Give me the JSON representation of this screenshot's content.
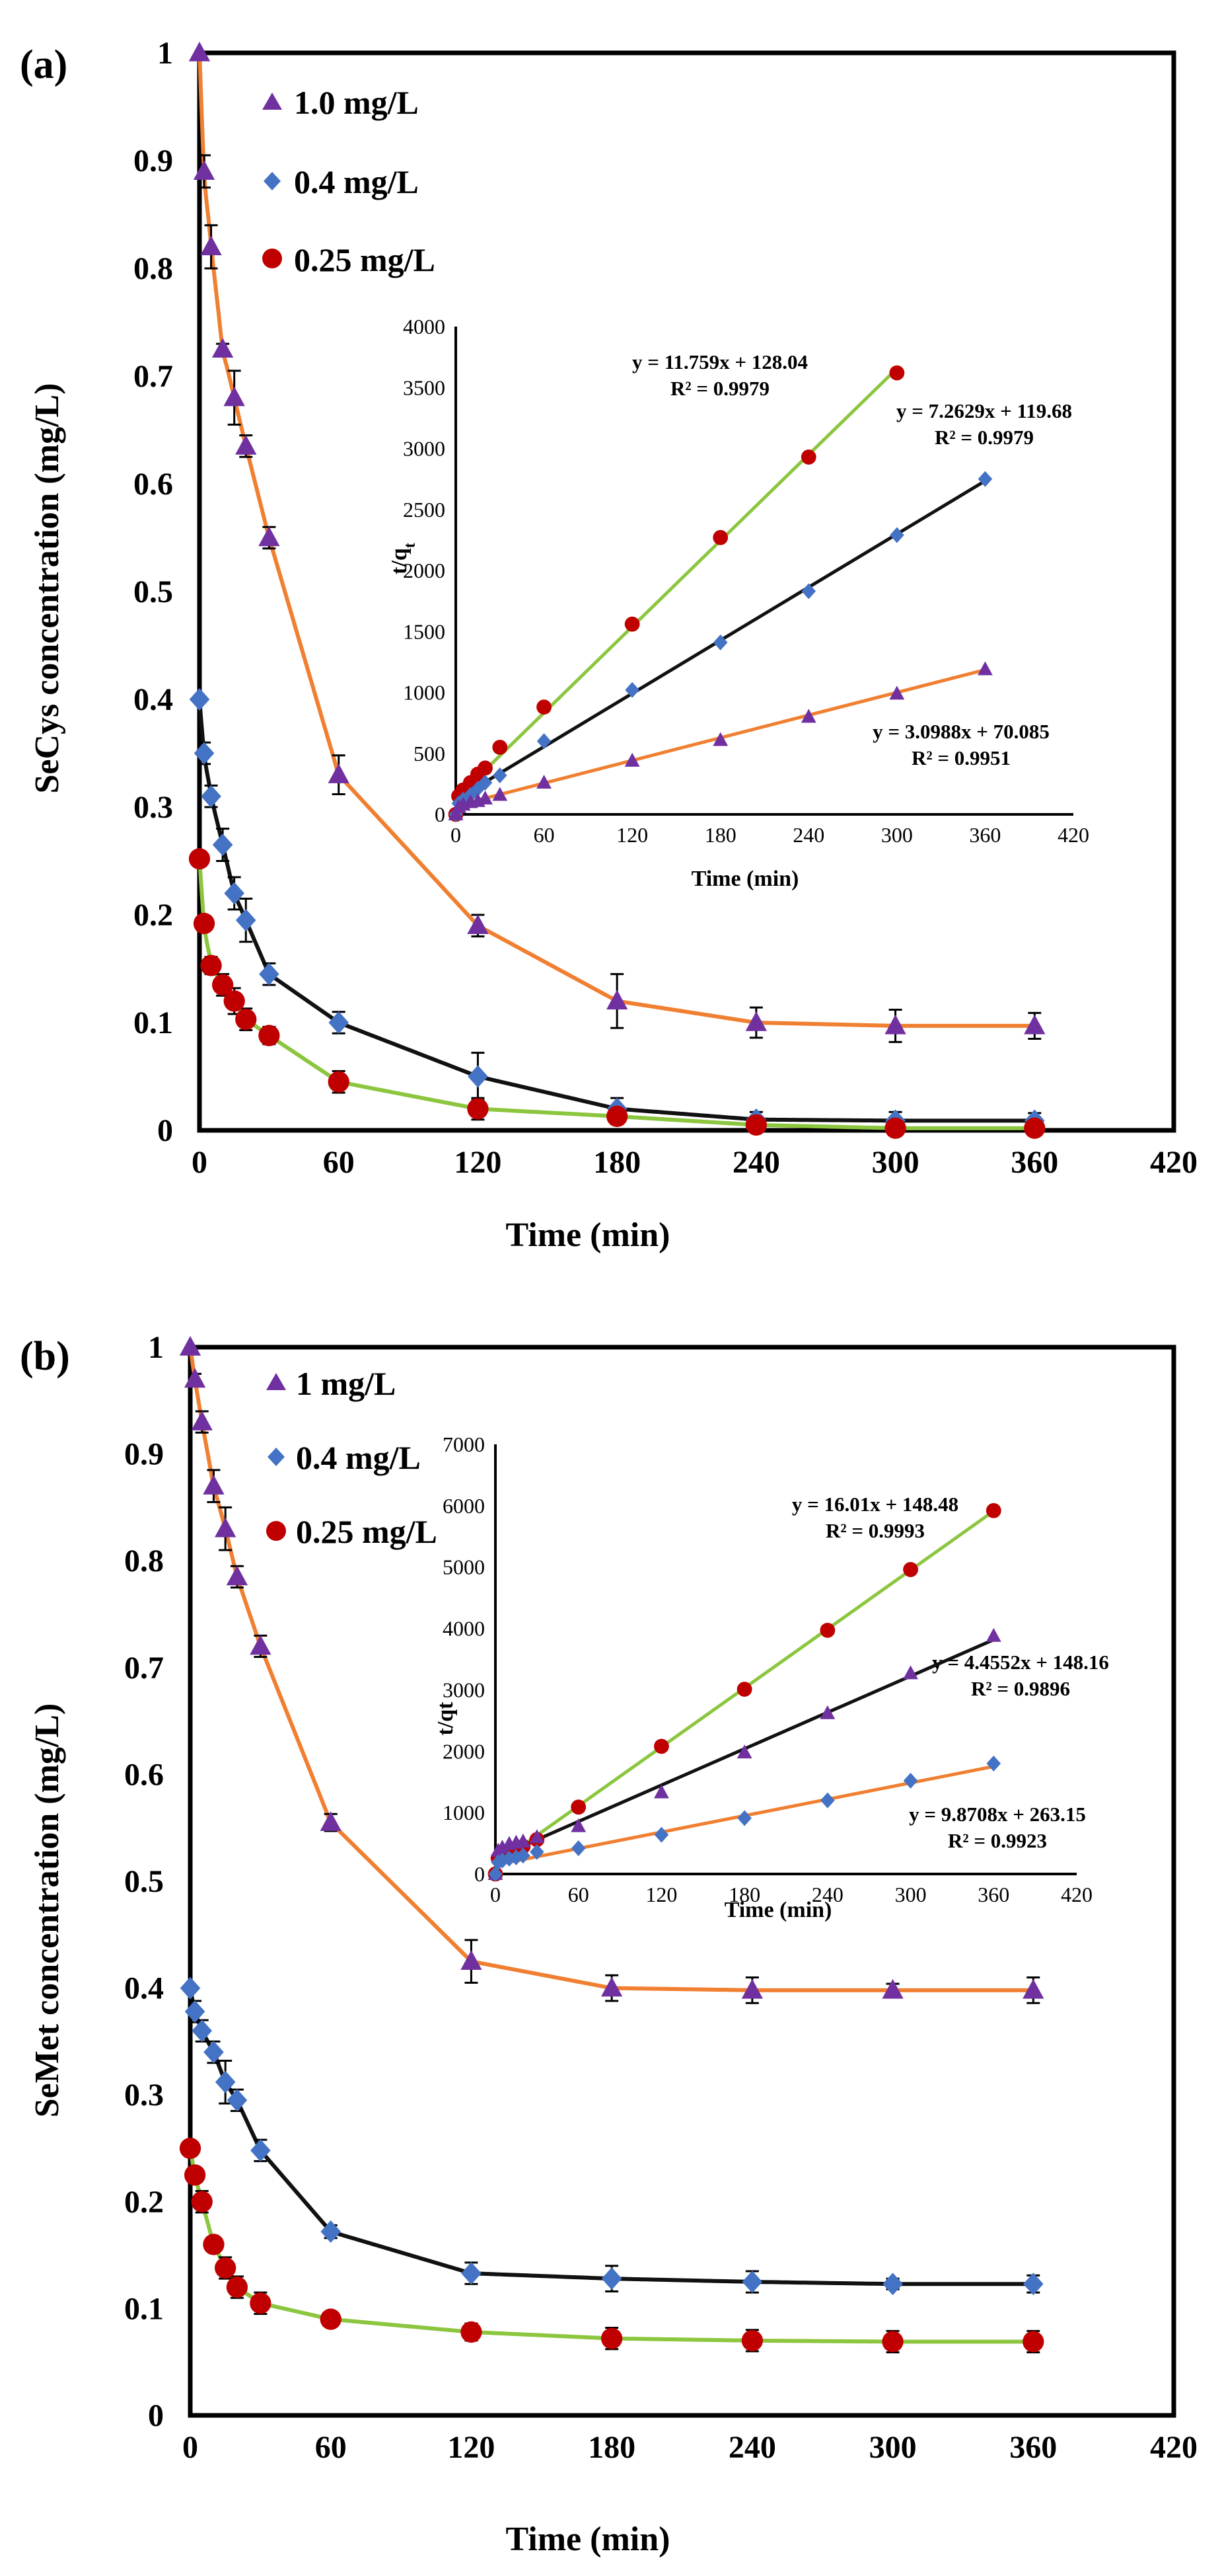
{
  "colors": {
    "orange": "#f07f31",
    "black": "#111111",
    "green": "#8cc63f",
    "purple": "#7030a0",
    "blue": "#4472c4",
    "red": "#c00000"
  },
  "panels": [
    {
      "label": "(a)",
      "ylabel": "SeCys concentration (mg/L)",
      "xlabel": "Time (min)",
      "legend": [
        "1.0 mg/L",
        "0.4 mg/L",
        "0.25 mg/L"
      ],
      "inset_ylabel_main": "t/q",
      "inset_ylabel_sub": "t",
      "inset_xlabel": "Time (min)",
      "equations": [
        {
          "eq": "y = 11.759x + 128.04",
          "r2": "R² = 0.9979"
        },
        {
          "eq": "y = 7.2629x + 119.68",
          "r2": "R² = 0.9979"
        },
        {
          "eq": "y = 3.0988x + 70.085",
          "r2": "R² = 0.9951"
        }
      ]
    },
    {
      "label": "(b)",
      "ylabel": "SeMet concentration (mg/L)",
      "xlabel": "Time (min)",
      "legend": [
        "1 mg/L",
        "0.4 mg/L",
        "0.25 mg/L"
      ],
      "inset_ylabel_main": "t/qt",
      "inset_ylabel_sub": "",
      "inset_xlabel": "Time (min)",
      "equations": [
        {
          "eq": "y = 16.01x + 148.48",
          "r2": "R² = 0.9993"
        },
        {
          "eq": "y = 4.4552x + 148.16",
          "r2": "R² = 0.9896"
        },
        {
          "eq": "y = 9.8708x + 263.15",
          "r2": "R² = 0.9923"
        }
      ]
    }
  ],
  "chart_data": [
    {
      "type": "scatter",
      "title": "",
      "xlabel": "Time (min)",
      "ylabel": "SeCys concentration (mg/L)",
      "xlim": [
        0,
        420
      ],
      "ylim": [
        0,
        1
      ],
      "xticks": [
        0,
        60,
        120,
        180,
        240,
        300,
        360,
        420
      ],
      "yticks": [
        0,
        0.1,
        0.2,
        0.3,
        0.4,
        0.5,
        0.6,
        0.7,
        0.8,
        0.9,
        1
      ],
      "legend_position": "top-left",
      "series": [
        {
          "name": "1.0 mg/L",
          "marker": "triangle",
          "color": "#7030a0",
          "line_color": "#f07f31",
          "x": [
            0,
            2,
            5,
            10,
            15,
            20,
            30,
            60,
            120,
            180,
            240,
            300,
            360
          ],
          "y": [
            1.0,
            0.89,
            0.82,
            0.725,
            0.68,
            0.635,
            0.55,
            0.33,
            0.19,
            0.12,
            0.1,
            0.097,
            0.097
          ],
          "err": [
            0,
            0.015,
            0.02,
            0.005,
            0.025,
            0.01,
            0.01,
            0.018,
            0.01,
            0.025,
            0.014,
            0.015,
            0.012
          ]
        },
        {
          "name": "0.4 mg/L",
          "marker": "diamond",
          "color": "#4472c4",
          "line_color": "#111111",
          "x": [
            0,
            2,
            5,
            10,
            15,
            20,
            30,
            60,
            120,
            180,
            240,
            300,
            360
          ],
          "y": [
            0.4,
            0.35,
            0.31,
            0.265,
            0.22,
            0.195,
            0.145,
            0.1,
            0.05,
            0.02,
            0.01,
            0.009,
            0.009
          ],
          "err": [
            0,
            0.01,
            0.01,
            0.015,
            0.015,
            0.02,
            0.01,
            0.01,
            0.022,
            0.01,
            0.007,
            0.008,
            0.007
          ]
        },
        {
          "name": "0.25 mg/L",
          "marker": "circle",
          "color": "#c00000",
          "line_color": "#8cc63f",
          "x": [
            0,
            2,
            5,
            10,
            15,
            20,
            30,
            60,
            120,
            180,
            240,
            300,
            360
          ],
          "y": [
            0.252,
            0.192,
            0.153,
            0.135,
            0.12,
            0.103,
            0.088,
            0.045,
            0.02,
            0.013,
            0.005,
            0.002,
            0.002
          ],
          "err": [
            0,
            0.005,
            0.008,
            0.01,
            0.012,
            0.01,
            0.008,
            0.01,
            0.01,
            0.007,
            0.004,
            0.003,
            0.003
          ]
        }
      ],
      "inset": {
        "type": "scatter",
        "xlabel": "Time (min)",
        "ylabel": "t/qt",
        "xlim": [
          0,
          420
        ],
        "ylim": [
          0,
          4000
        ],
        "xticks": [
          0,
          60,
          120,
          180,
          240,
          300,
          360,
          420
        ],
        "yticks": [
          0,
          500,
          1000,
          1500,
          2000,
          2500,
          3000,
          3500,
          4000
        ],
        "series": [
          {
            "name": "0.25 mg/L",
            "marker": "circle",
            "color": "#c00000",
            "line_color": "#8cc63f",
            "slope": 11.759,
            "intercept": 128.04,
            "x": [
              0,
              2,
              5,
              10,
              15,
              20,
              30,
              60,
              120,
              180,
              240,
              300
            ],
            "y": [
              0,
              150,
              200,
              260,
              330,
              380,
              550,
              880,
              1560,
              2270,
              2930,
              3620
            ]
          },
          {
            "name": "0.4 mg/L",
            "marker": "diamond",
            "color": "#4472c4",
            "line_color": "#111111",
            "slope": 7.2629,
            "intercept": 119.68,
            "x": [
              0,
              2,
              5,
              10,
              15,
              20,
              30,
              60,
              120,
              180,
              240,
              300,
              360
            ],
            "y": [
              0,
              90,
              120,
              160,
              210,
              260,
              320,
              600,
              1020,
              1410,
              1830,
              2290,
              2750
            ]
          },
          {
            "name": "1.0 mg/L",
            "marker": "triangle",
            "color": "#7030a0",
            "line_color": "#f07f31",
            "slope": 3.0988,
            "intercept": 70.085,
            "x": [
              0,
              2,
              5,
              10,
              15,
              20,
              30,
              60,
              120,
              180,
              240,
              300,
              360
            ],
            "y": [
              0,
              60,
              80,
              100,
              110,
              130,
              160,
              260,
              440,
              610,
              800,
              990,
              1190
            ]
          }
        ]
      }
    },
    {
      "type": "scatter",
      "title": "",
      "xlabel": "Time (min)",
      "ylabel": "SeMet concentration (mg/L)",
      "xlim": [
        0,
        420
      ],
      "ylim": [
        0,
        1
      ],
      "xticks": [
        0,
        60,
        120,
        180,
        240,
        300,
        360,
        420
      ],
      "yticks": [
        0,
        0.1,
        0.2,
        0.3,
        0.4,
        0.5,
        0.6,
        0.7,
        0.8,
        0.9,
        1
      ],
      "legend_position": "top-left",
      "series": [
        {
          "name": "1 mg/L",
          "marker": "triangle",
          "color": "#7030a0",
          "line_color": "#f07f31",
          "x": [
            0,
            2,
            5,
            10,
            15,
            20,
            30,
            60,
            120,
            180,
            240,
            300,
            360
          ],
          "y": [
            1.0,
            0.97,
            0.93,
            0.87,
            0.83,
            0.785,
            0.72,
            0.555,
            0.425,
            0.4,
            0.398,
            0.398,
            0.398
          ],
          "err": [
            0,
            0.005,
            0.01,
            0.015,
            0.02,
            0.01,
            0.01,
            0.008,
            0.02,
            0.012,
            0.012,
            0.006,
            0.012
          ]
        },
        {
          "name": "0.4 mg/L",
          "marker": "diamond",
          "color": "#4472c4",
          "line_color": "#111111",
          "x": [
            0,
            2,
            5,
            10,
            15,
            20,
            30,
            60,
            120,
            180,
            240,
            300,
            360
          ],
          "y": [
            0.4,
            0.378,
            0.36,
            0.34,
            0.312,
            0.295,
            0.248,
            0.172,
            0.133,
            0.128,
            0.125,
            0.123,
            0.123
          ],
          "err": [
            0,
            0.01,
            0.01,
            0.01,
            0.02,
            0.01,
            0.01,
            0.006,
            0.01,
            0.012,
            0.01,
            0.005,
            0.008
          ]
        },
        {
          "name": "0.25 mg/L",
          "marker": "circle",
          "color": "#c00000",
          "line_color": "#8cc63f",
          "x": [
            0,
            2,
            5,
            10,
            15,
            20,
            30,
            60,
            120,
            180,
            240,
            300,
            360
          ],
          "y": [
            0.25,
            0.225,
            0.2,
            0.16,
            0.138,
            0.12,
            0.105,
            0.09,
            0.078,
            0.072,
            0.07,
            0.069,
            0.069
          ],
          "err": [
            0,
            0.005,
            0.01,
            0.005,
            0.01,
            0.01,
            0.01,
            0.006,
            0.008,
            0.01,
            0.01,
            0.01,
            0.01
          ]
        }
      ],
      "inset": {
        "type": "scatter",
        "xlabel": "Time (min)",
        "ylabel": "t/qt",
        "xlim": [
          0,
          420
        ],
        "ylim": [
          0,
          7000
        ],
        "xticks": [
          0,
          60,
          120,
          180,
          240,
          300,
          360,
          420
        ],
        "yticks": [
          0,
          1000,
          2000,
          3000,
          4000,
          5000,
          6000,
          7000
        ],
        "series": [
          {
            "name": "0.25 mg/L",
            "marker": "circle",
            "color": "#c00000",
            "line_color": "#8cc63f",
            "slope": 16.01,
            "intercept": 148.48,
            "x": [
              0,
              2,
              5,
              10,
              15,
              20,
              30,
              60,
              120,
              180,
              240,
              300,
              360
            ],
            "y": [
              0,
              260,
              290,
              330,
              380,
              450,
              560,
              1090,
              2080,
              3010,
              3970,
              4960,
              5920
            ]
          },
          {
            "name": "1 mg/L",
            "marker": "triangle",
            "color": "#7030a0",
            "line_color": "#f07f31",
            "slope": 4.4552,
            "intercept": 148.16,
            "x": [
              0,
              2,
              5,
              10,
              15,
              20,
              30,
              60,
              120,
              180,
              240,
              300,
              360
            ],
            "y": [
              0,
              380,
              430,
              490,
              510,
              530,
              600,
              780,
              1330,
              1980,
              2620,
              3270,
              3880
            ]
          },
          {
            "name": "0.4 mg/L",
            "marker": "diamond",
            "color": "#4472c4",
            "line_color": "#111111",
            "slope": 9.8708,
            "intercept": 263.15,
            "x": [
              0,
              2,
              5,
              10,
              15,
              20,
              30,
              60,
              120,
              180,
              240,
              300,
              360
            ],
            "y": [
              0,
              190,
              220,
              250,
              270,
              300,
              360,
              420,
              640,
              910,
              1200,
              1520,
              1800
            ]
          }
        ]
      }
    }
  ]
}
